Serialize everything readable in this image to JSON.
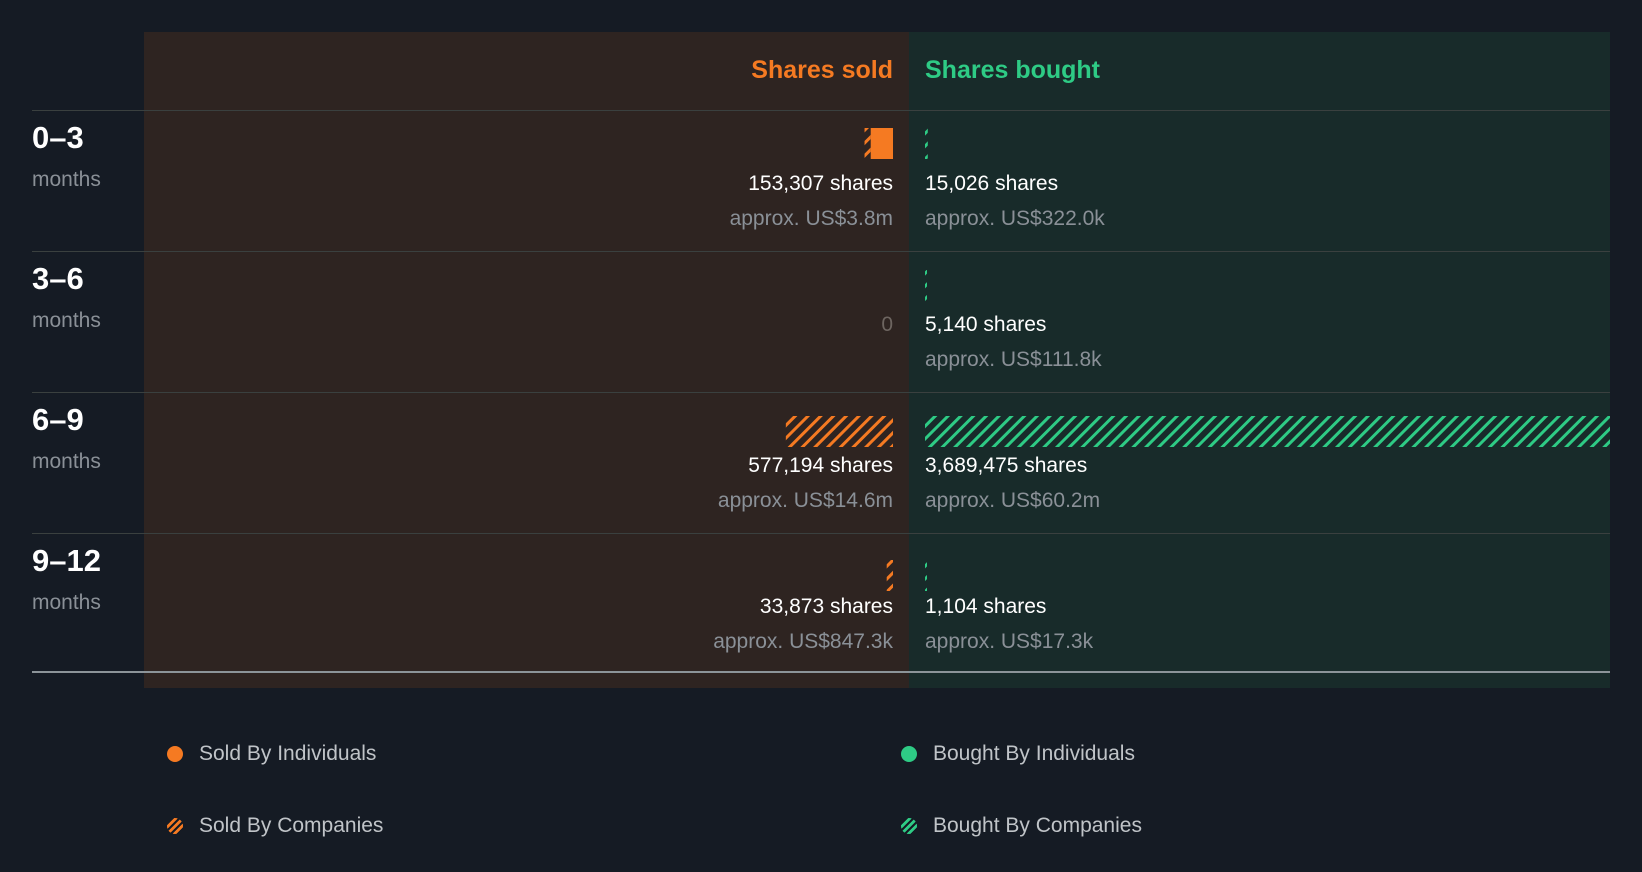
{
  "chart_data": {
    "type": "bar",
    "headers": {
      "sold": "Shares sold",
      "bought": "Shares bought"
    },
    "unit": "months",
    "periods": [
      {
        "label": "0–3",
        "sold_shares": "153,307 shares",
        "sold_value": "approx. US$3.8m",
        "bought_shares": "15,026 shares",
        "bought_value": "approx. US$322.0k",
        "sold_individuals": 120000,
        "sold_companies": 33307,
        "bought_individuals": 0,
        "bought_companies": 15026
      },
      {
        "label": "3–6",
        "sold_zero": "0",
        "bought_shares": "5,140 shares",
        "bought_value": "approx. US$111.8k",
        "sold_individuals": 0,
        "sold_companies": 0,
        "bought_individuals": 0,
        "bought_companies": 5140
      },
      {
        "label": "6–9",
        "sold_shares": "577,194 shares",
        "sold_value": "approx. US$14.6m",
        "bought_shares": "3,689,475 shares",
        "bought_value": "approx. US$60.2m",
        "sold_individuals": 0,
        "sold_companies": 577194,
        "bought_individuals": 0,
        "bought_companies": 3689475
      },
      {
        "label": "9–12",
        "sold_shares": "33,873 shares",
        "sold_value": "approx. US$847.3k",
        "bought_shares": "1,104 shares",
        "bought_value": "approx. US$17.3k",
        "sold_individuals": 0,
        "sold_companies": 33873,
        "bought_individuals": 0,
        "bought_companies": 1104
      }
    ],
    "max_shares": 3689475,
    "legend": [
      {
        "label": "Sold By Individuals",
        "pattern": "solid",
        "color": "#f57a22"
      },
      {
        "label": "Bought By Individuals",
        "pattern": "solid",
        "color": "#2ecb85"
      },
      {
        "label": "Sold By Companies",
        "pattern": "hatched",
        "color": "#f57a22"
      },
      {
        "label": "Bought By Companies",
        "pattern": "hatched",
        "color": "#2ecb85"
      }
    ],
    "colors": {
      "sold": "#f57a22",
      "bought": "#2ecb85"
    }
  }
}
